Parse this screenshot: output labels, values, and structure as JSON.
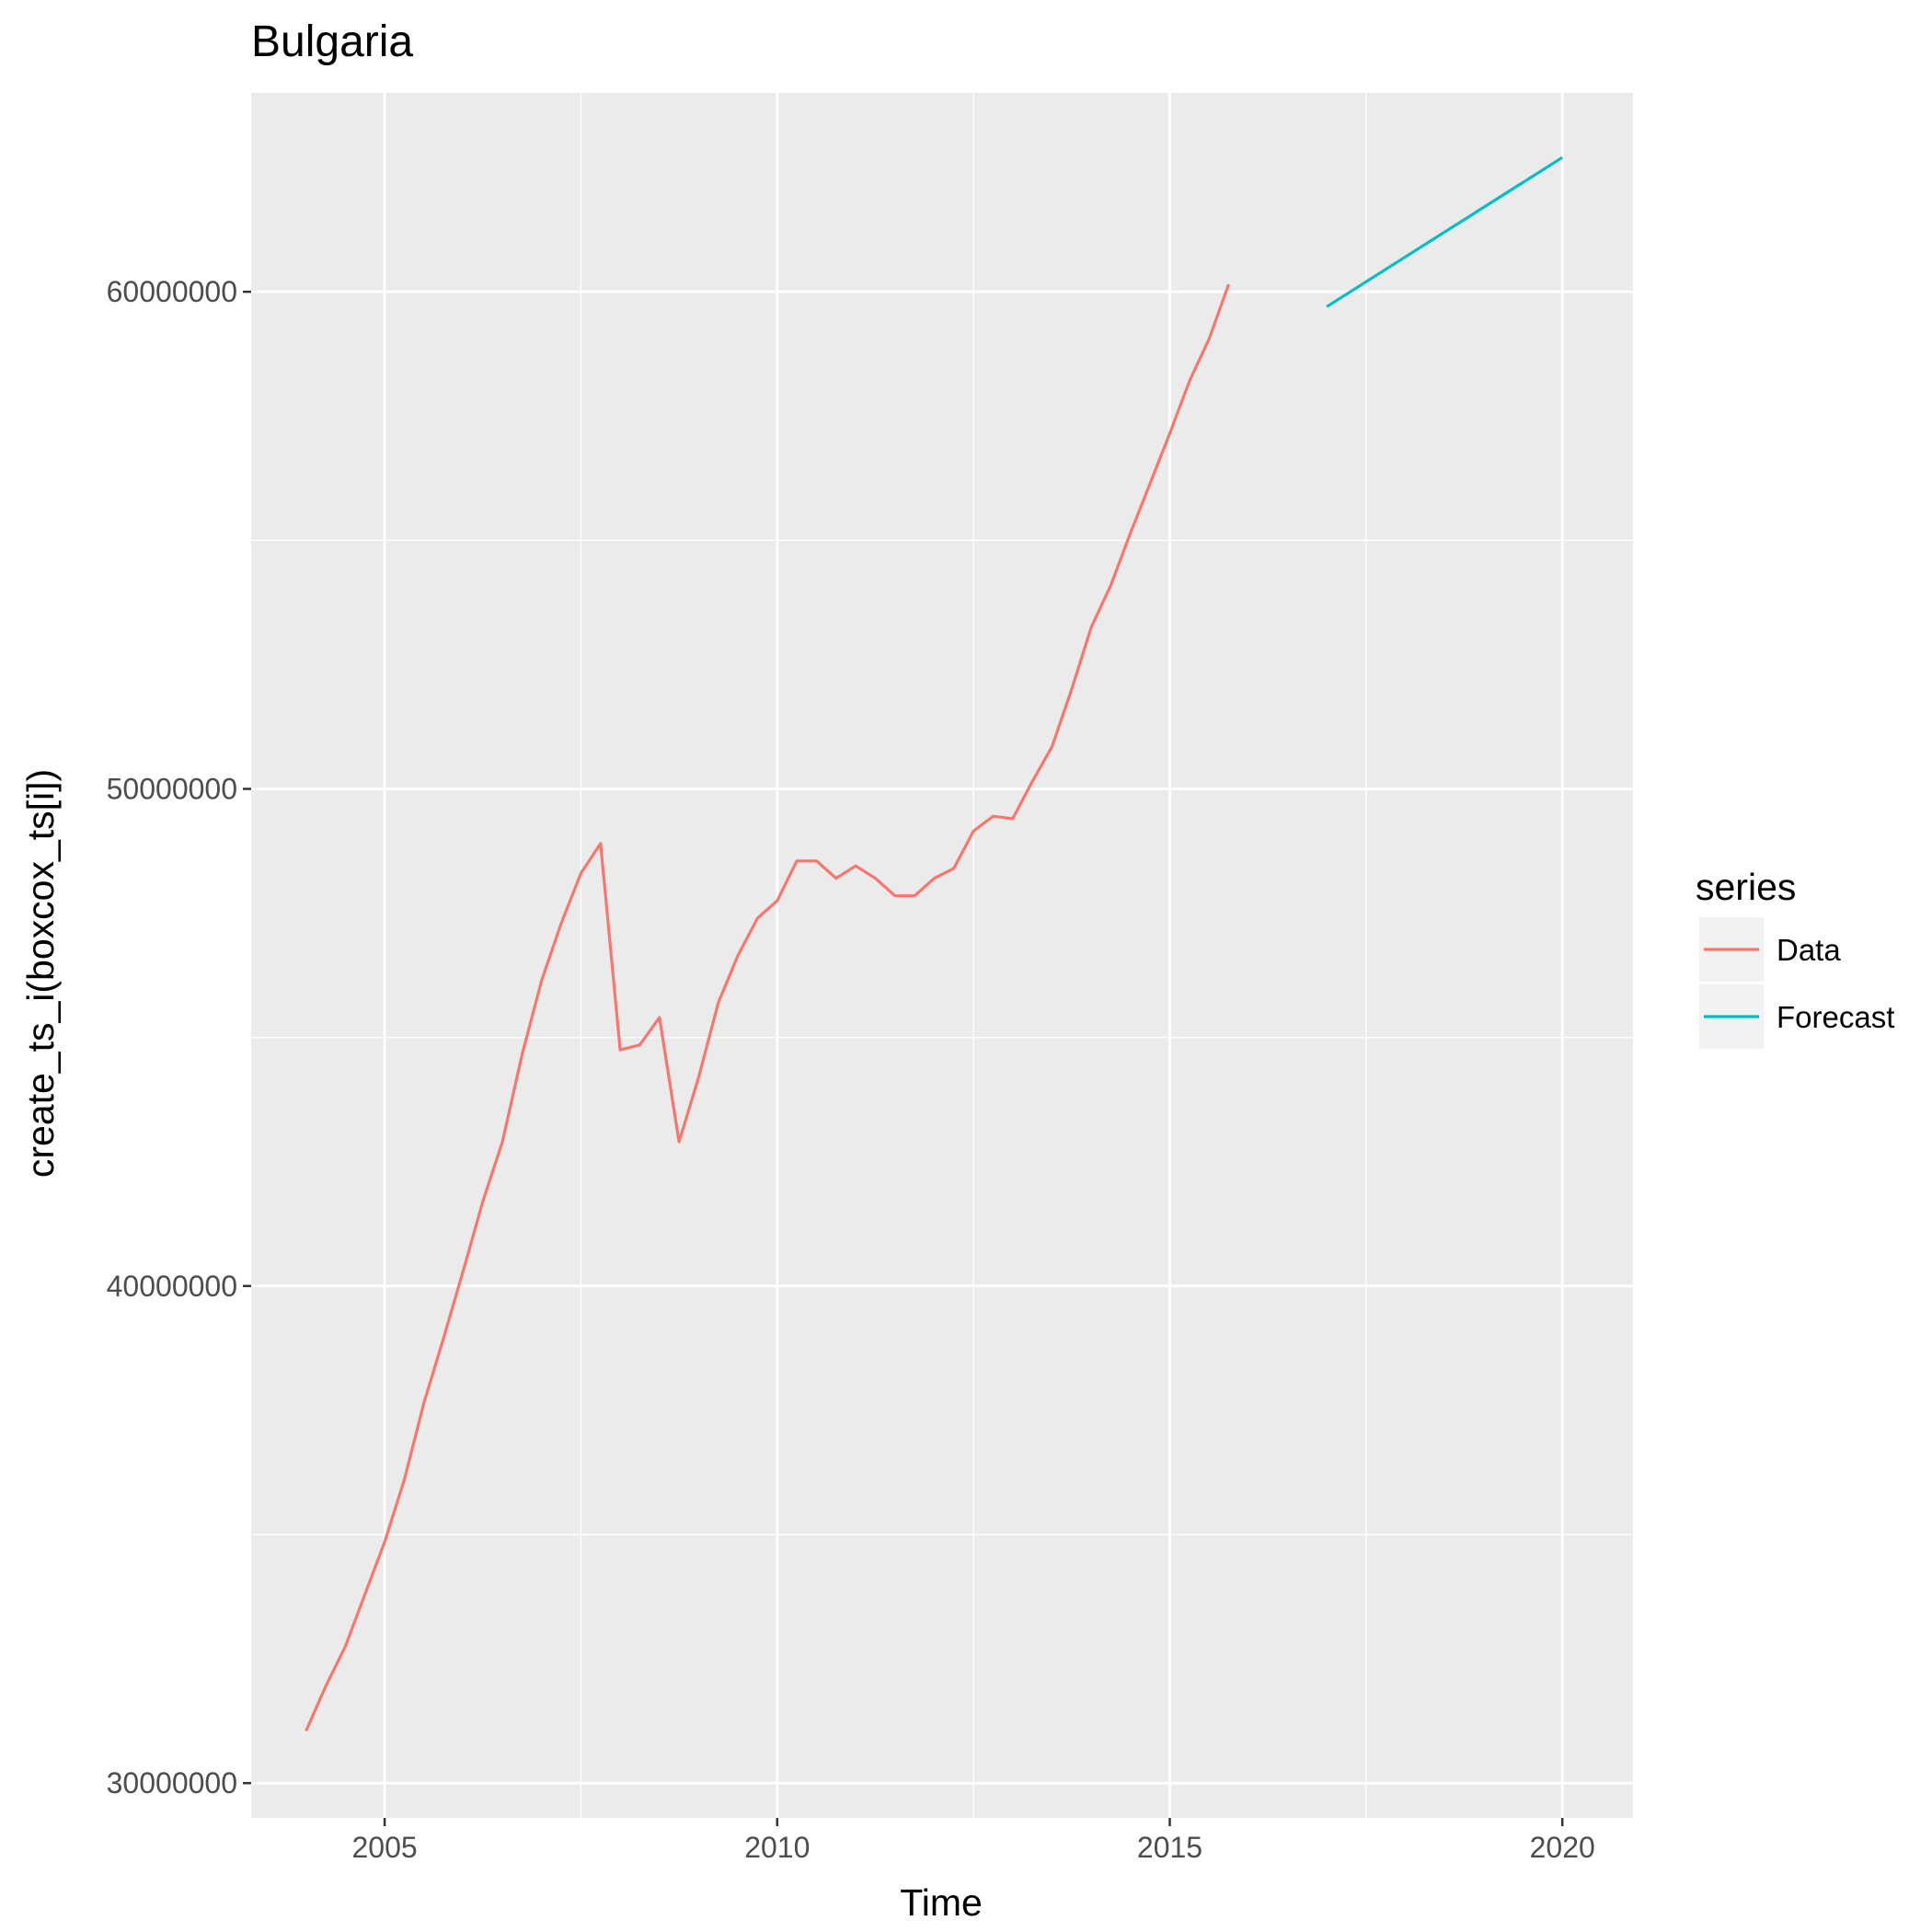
{
  "chart_data": {
    "type": "line",
    "title": "Bulgaria",
    "xlabel": "Time",
    "ylabel": "create_ts_i(boxcox_ts[i])",
    "xlim": [
      2003.3,
      2020.9
    ],
    "ylim": [
      29300000,
      64000000
    ],
    "x_ticks": [
      2005,
      2010,
      2015,
      2020
    ],
    "x_tick_labels": [
      "2005",
      "2010",
      "2015",
      "2020"
    ],
    "y_ticks": [
      30000000,
      40000000,
      50000000,
      60000000
    ],
    "y_tick_labels": [
      "30000000",
      "40000000",
      "50000000",
      "60000000"
    ],
    "grid": true,
    "legend": {
      "title": "series",
      "position": "right"
    },
    "series": [
      {
        "name": "Data",
        "color": "#F8766D",
        "x": [
          2004.0,
          2004.25,
          2004.5,
          2004.75,
          2005.0,
          2005.25,
          2005.5,
          2005.75,
          2006.0,
          2006.25,
          2006.5,
          2006.75,
          2007.0,
          2007.25,
          2007.5,
          2007.75,
          2008.0,
          2008.25,
          2008.5,
          2008.75,
          2009.0,
          2009.25,
          2009.5,
          2009.75,
          2010.0,
          2010.25,
          2010.5,
          2010.75,
          2011.0,
          2011.25,
          2011.5,
          2011.75,
          2012.0,
          2012.25,
          2012.5,
          2012.75,
          2013.0,
          2013.25,
          2013.5,
          2013.75,
          2014.0,
          2014.25,
          2014.5,
          2014.75,
          2015.0,
          2015.25,
          2015.5,
          2015.75
        ],
        "values": [
          31050000,
          31950000,
          32750000,
          33800000,
          34850000,
          36100000,
          37650000,
          38950000,
          40300000,
          41700000,
          42900000,
          44650000,
          46150000,
          47300000,
          48300000,
          48900000,
          44750000,
          44850000,
          45400000,
          42900000,
          44200000,
          45700000,
          46650000,
          47400000,
          47750000,
          48550000,
          48550000,
          48200000,
          48450000,
          48200000,
          47850000,
          47850000,
          48200000,
          48400000,
          49150000,
          49450000,
          49400000,
          50150000,
          50850000,
          52000000,
          53250000,
          54100000,
          55150000,
          56150000,
          57150000,
          58200000,
          59050000,
          60150000
        ]
      },
      {
        "name": "Forecast",
        "color": "#00BFC4",
        "x": [
          2017.0,
          2020.0
        ],
        "values": [
          59700000,
          62700000
        ]
      }
    ]
  }
}
